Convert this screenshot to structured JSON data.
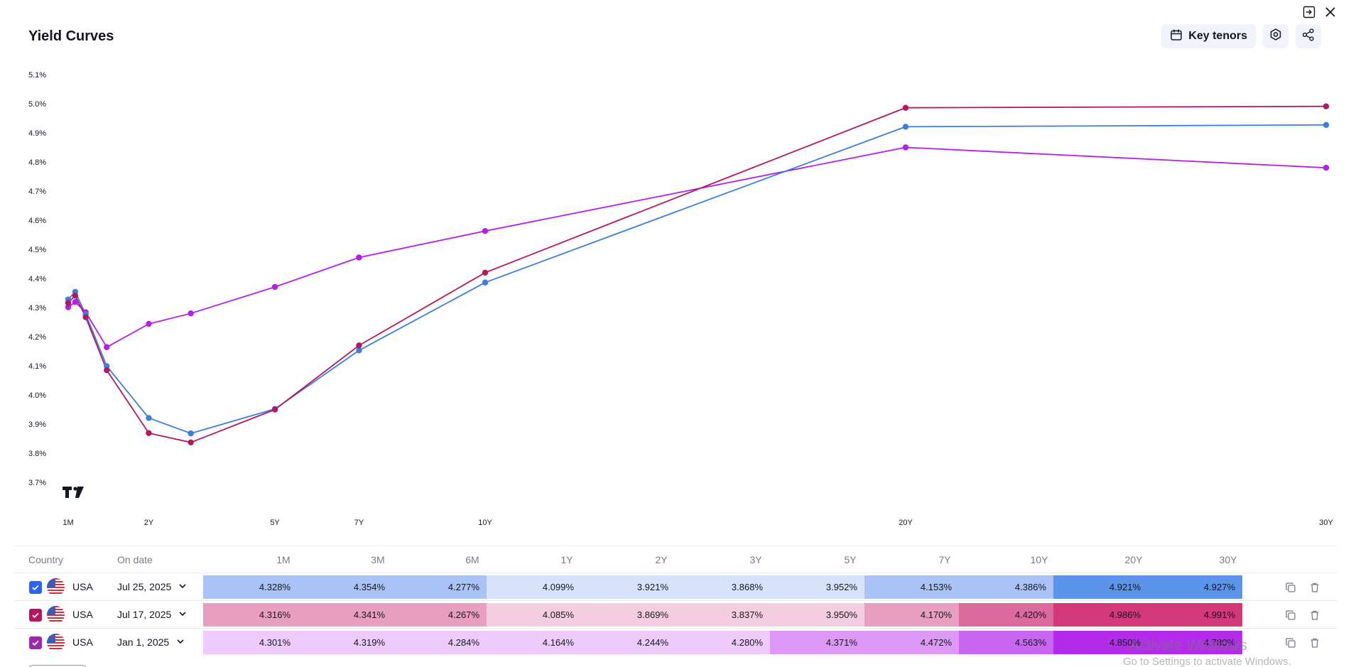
{
  "title": "Yield Curves",
  "toolbar": {
    "key_tenors_label": "Key tenors",
    "key_tenors_icon": "calendar-icon",
    "settings_icon": "gear-icon",
    "share_icon": "share-icon"
  },
  "window": {
    "popout_icon": "popout-icon",
    "close_icon": "close-icon"
  },
  "chart_data": {
    "type": "line",
    "title": "Yield Curves",
    "xlabel": "",
    "ylabel": "",
    "x_unit": "years",
    "xlim": [
      0.0833,
      30
    ],
    "ylim": [
      3.65,
      5.15
    ],
    "y_ticks": [
      {
        "value": 5.1,
        "label": "5.1%"
      },
      {
        "value": 5.0,
        "label": "5.0%"
      },
      {
        "value": 4.9,
        "label": "4.9%"
      },
      {
        "value": 4.8,
        "label": "4.8%"
      },
      {
        "value": 4.7,
        "label": "4.7%"
      },
      {
        "value": 4.6,
        "label": "4.6%"
      },
      {
        "value": 4.5,
        "label": "4.5%"
      },
      {
        "value": 4.4,
        "label": "4.4%"
      },
      {
        "value": 4.3,
        "label": "4.3%"
      },
      {
        "value": 4.2,
        "label": "4.2%"
      },
      {
        "value": 4.1,
        "label": "4.1%"
      },
      {
        "value": 4.0,
        "label": "4.0%"
      },
      {
        "value": 3.9,
        "label": "3.9%"
      },
      {
        "value": 3.8,
        "label": "3.8%"
      },
      {
        "value": 3.7,
        "label": "3.7%"
      }
    ],
    "x_ticks": [
      {
        "value": 0.0833,
        "label": "1M"
      },
      {
        "value": 2,
        "label": "2Y"
      },
      {
        "value": 5,
        "label": "5Y"
      },
      {
        "value": 7,
        "label": "7Y"
      },
      {
        "value": 10,
        "label": "10Y"
      },
      {
        "value": 20,
        "label": "20Y"
      },
      {
        "value": 30,
        "label": "30Y"
      }
    ],
    "x": [
      0.0833,
      0.25,
      0.5,
      1,
      2,
      3,
      5,
      7,
      10,
      20,
      30
    ],
    "series": [
      {
        "name": "Jan 1, 2025",
        "color": "#b51de8",
        "values": [
          4.301,
          4.319,
          4.284,
          4.164,
          4.244,
          4.28,
          4.371,
          4.472,
          4.563,
          4.85,
          4.78
        ]
      },
      {
        "name": "Jul 25, 2025",
        "color": "#3a7fe0",
        "values": [
          4.328,
          4.354,
          4.277,
          4.099,
          3.921,
          3.868,
          3.952,
          4.153,
          4.386,
          4.921,
          4.927
        ]
      },
      {
        "name": "Jul 17, 2025",
        "color": "#b5175e",
        "values": [
          4.316,
          4.341,
          4.267,
          4.085,
          3.869,
          3.837,
          3.95,
          4.17,
          4.42,
          4.986,
          4.991
        ]
      }
    ],
    "logo": "tradingview-logo"
  },
  "table": {
    "headers": {
      "country": "Country",
      "date": "On date"
    },
    "tenors": [
      "1M",
      "3M",
      "6M",
      "1Y",
      "2Y",
      "3Y",
      "5Y",
      "7Y",
      "10Y",
      "20Y",
      "30Y"
    ],
    "rows": [
      {
        "checked": true,
        "color": "#2962ff",
        "flag_icon": "usa-flag-icon",
        "country": "USA",
        "date": "Jul 25, 2025",
        "values": [
          "4.328%",
          "4.354%",
          "4.277%",
          "4.099%",
          "3.921%",
          "3.868%",
          "3.952%",
          "4.153%",
          "4.386%",
          "4.921%",
          "4.927%"
        ],
        "cell_colors": [
          "#a9c3f7",
          "#a9c3f7",
          "#a9c3f7",
          "#d6e3fb",
          "#d6e3fb",
          "#d6e3fb",
          "#d6e3fb",
          "#a9c3f7",
          "#a9c3f7",
          "#5c93eb",
          "#5c93eb"
        ]
      },
      {
        "checked": true,
        "color": "#b5175e",
        "flag_icon": "usa-flag-icon",
        "country": "USA",
        "date": "Jul 17, 2025",
        "values": [
          "4.316%",
          "4.341%",
          "4.267%",
          "4.085%",
          "3.869%",
          "3.837%",
          "3.950%",
          "4.170%",
          "4.420%",
          "4.986%",
          "4.991%"
        ],
        "cell_colors": [
          "#e89fbf",
          "#e89fbf",
          "#e89fbf",
          "#f5cde0",
          "#f5cde0",
          "#f5cde0",
          "#f5cde0",
          "#e89fbf",
          "#db6b9c",
          "#d2387a",
          "#d2387a"
        ]
      },
      {
        "checked": true,
        "color": "#9c27b0",
        "flag_icon": "usa-flag-icon",
        "country": "USA",
        "date": "Jan 1, 2025",
        "values": [
          "4.301%",
          "4.319%",
          "4.284%",
          "4.164%",
          "4.244%",
          "4.280%",
          "4.371%",
          "4.472%",
          "4.563%",
          "4.850%",
          "4.780%"
        ],
        "cell_colors": [
          "#efcafc",
          "#efcafc",
          "#efcafc",
          "#efcafc",
          "#efcafc",
          "#efcafc",
          "#dd99f5",
          "#dd99f5",
          "#c966f1",
          "#b42ceb",
          "#b42ceb"
        ]
      }
    ],
    "row_actions": {
      "copy_icon": "copy-icon",
      "delete_icon": "trash-icon"
    }
  },
  "os_watermark": {
    "line1": "Activate Windows",
    "line2": "Go to Settings to activate Windows."
  }
}
